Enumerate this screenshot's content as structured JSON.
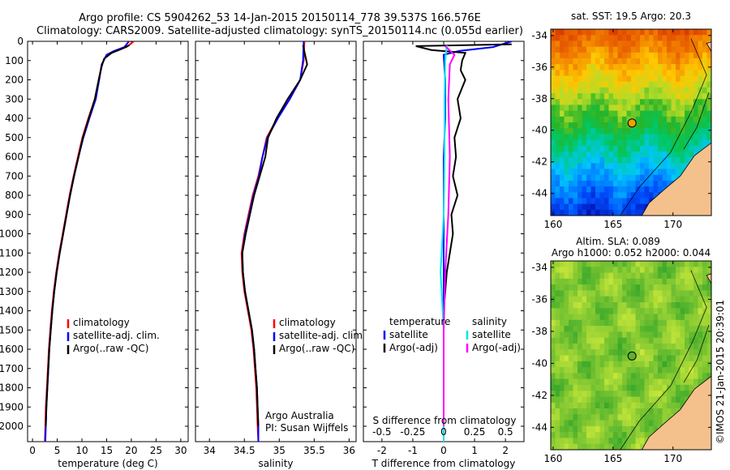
{
  "header": {
    "line1": "Argo profile: CS 5904262_53 14-Jan-2015 20150114_778 39.537S 166.576E",
    "line2": "Climatology: CARS2009. Satellite-adjusted climatology: synTS_20150114.nc (0.055d earlier)"
  },
  "colors": {
    "climatology": "#ff0000",
    "satellite": "#0000ff",
    "argo": "#000000",
    "salinity_satellite": "#00e5ee",
    "salinity_argo": "#ff00ff",
    "land": "#f4c08c"
  },
  "depth_axis": {
    "ticks": [
      0,
      100,
      200,
      300,
      400,
      500,
      600,
      700,
      800,
      900,
      1000,
      1100,
      1200,
      1300,
      1400,
      1500,
      1600,
      1700,
      1800,
      1900,
      2000
    ],
    "range": [
      0,
      2080
    ]
  },
  "chart_data": [
    {
      "type": "line",
      "id": "temperature",
      "xlabel": "temperature (deg C)",
      "xlim": [
        -1,
        31.5
      ],
      "xticks": [
        0,
        5,
        10,
        15,
        20,
        25,
        30
      ],
      "legend": [
        "climatology",
        "satellite-adj. clim.",
        "Argo(..raw -QC)"
      ],
      "series": [
        {
          "name": "climatology",
          "color": "red",
          "points": [
            [
              20.5,
              0
            ],
            [
              19,
              30
            ],
            [
              16.5,
              50
            ],
            [
              15,
              70
            ],
            [
              14,
              120
            ],
            [
              13.4,
              200
            ],
            [
              12.6,
              300
            ],
            [
              11.3,
              400
            ],
            [
              10.1,
              500
            ],
            [
              9.2,
              600
            ],
            [
              8.3,
              700
            ],
            [
              7.5,
              800
            ],
            [
              6.8,
              900
            ],
            [
              6.1,
              1000
            ],
            [
              5.4,
              1100
            ],
            [
              4.8,
              1200
            ],
            [
              4.3,
              1300
            ],
            [
              3.9,
              1400
            ],
            [
              3.6,
              1500
            ],
            [
              3.3,
              1600
            ],
            [
              3.1,
              1700
            ],
            [
              2.9,
              1800
            ],
            [
              2.7,
              1900
            ],
            [
              2.6,
              2000
            ],
            [
              2.5,
              2080
            ]
          ]
        },
        {
          "name": "satellite-adj. clim.",
          "color": "blue",
          "points": [
            [
              19.5,
              0
            ],
            [
              18.6,
              30
            ],
            [
              16.5,
              50
            ],
            [
              15,
              70
            ],
            [
              14,
              120
            ],
            [
              13.5,
              200
            ],
            [
              12.8,
              300
            ],
            [
              11.5,
              400
            ],
            [
              10.3,
              500
            ],
            [
              9.3,
              600
            ],
            [
              8.4,
              700
            ],
            [
              7.6,
              800
            ],
            [
              6.9,
              900
            ],
            [
              6.2,
              1000
            ],
            [
              5.5,
              1100
            ],
            [
              4.9,
              1200
            ],
            [
              4.4,
              1300
            ],
            [
              4,
              1400
            ],
            [
              3.7,
              1500
            ],
            [
              3.4,
              1600
            ],
            [
              3.2,
              1700
            ],
            [
              3,
              1800
            ],
            [
              2.8,
              1900
            ],
            [
              2.7,
              2000
            ],
            [
              2.6,
              2080
            ]
          ]
        },
        {
          "name": "Argo(..raw -QC)",
          "color": "black",
          "points": [
            [
              19.6,
              20
            ],
            [
              18,
              40
            ],
            [
              16,
              60
            ],
            [
              14.5,
              90
            ],
            [
              14,
              130
            ],
            [
              13.4,
              200
            ],
            [
              12.6,
              300
            ],
            [
              11.4,
              400
            ],
            [
              10.2,
              500
            ],
            [
              9.3,
              600
            ],
            [
              8.4,
              700
            ],
            [
              7.6,
              800
            ],
            [
              6.9,
              900
            ],
            [
              6.2,
              1000
            ],
            [
              5.5,
              1100
            ],
            [
              4.9,
              1200
            ],
            [
              4.4,
              1300
            ],
            [
              4,
              1400
            ],
            [
              3.7,
              1500
            ],
            [
              3.4,
              1600
            ],
            [
              3.2,
              1700
            ],
            [
              3,
              1800
            ],
            [
              2.8,
              1900
            ],
            [
              2.7,
              2000
            ]
          ]
        }
      ]
    },
    {
      "type": "line",
      "id": "salinity",
      "xlabel": "salinity",
      "xlim": [
        33.8,
        36.1
      ],
      "xticks": [
        34,
        34.5,
        35,
        35.5,
        36
      ],
      "legend": [
        "climatology",
        "satellite-adj. clim.",
        "Argo(..raw -QC)"
      ],
      "annotation": [
        "Argo Australia",
        "PI: Susan Wijffels"
      ],
      "series": [
        {
          "name": "climatology",
          "color": "red",
          "points": [
            [
              35.36,
              0
            ],
            [
              35.35,
              100
            ],
            [
              35.3,
              200
            ],
            [
              35.15,
              300
            ],
            [
              34.97,
              400
            ],
            [
              34.82,
              500
            ],
            [
              34.76,
              600
            ],
            [
              34.7,
              700
            ],
            [
              34.62,
              800
            ],
            [
              34.56,
              900
            ],
            [
              34.5,
              1000
            ],
            [
              34.46,
              1100
            ],
            [
              34.47,
              1200
            ],
            [
              34.5,
              1300
            ],
            [
              34.55,
              1400
            ],
            [
              34.6,
              1500
            ],
            [
              34.63,
              1600
            ],
            [
              34.65,
              1700
            ],
            [
              34.67,
              1800
            ],
            [
              34.68,
              1900
            ],
            [
              34.69,
              2000
            ],
            [
              34.7,
              2080
            ]
          ]
        },
        {
          "name": "satellite-adj. clim.",
          "color": "blue",
          "points": [
            [
              35.35,
              0
            ],
            [
              35.34,
              100
            ],
            [
              35.3,
              200
            ],
            [
              35.15,
              300
            ],
            [
              34.98,
              400
            ],
            [
              34.83,
              500
            ],
            [
              34.76,
              600
            ],
            [
              34.71,
              700
            ],
            [
              34.63,
              800
            ],
            [
              34.57,
              900
            ],
            [
              34.51,
              1000
            ],
            [
              34.47,
              1100
            ],
            [
              34.48,
              1200
            ],
            [
              34.51,
              1300
            ],
            [
              34.56,
              1400
            ],
            [
              34.61,
              1500
            ],
            [
              34.64,
              1600
            ],
            [
              34.66,
              1700
            ],
            [
              34.68,
              1800
            ],
            [
              34.69,
              1900
            ],
            [
              34.7,
              2000
            ],
            [
              34.7,
              2080
            ]
          ]
        },
        {
          "name": "Argo(..raw -QC)",
          "color": "black",
          "points": [
            [
              35.34,
              20
            ],
            [
              35.4,
              120
            ],
            [
              35.3,
              200
            ],
            [
              35.12,
              300
            ],
            [
              34.96,
              400
            ],
            [
              34.84,
              500
            ],
            [
              34.8,
              600
            ],
            [
              34.72,
              700
            ],
            [
              34.64,
              800
            ],
            [
              34.58,
              900
            ],
            [
              34.52,
              1000
            ],
            [
              34.47,
              1100
            ],
            [
              34.48,
              1200
            ],
            [
              34.51,
              1300
            ],
            [
              34.56,
              1400
            ],
            [
              34.61,
              1500
            ],
            [
              34.64,
              1600
            ],
            [
              34.66,
              1700
            ],
            [
              34.68,
              1800
            ],
            [
              34.69,
              1900
            ],
            [
              34.7,
              2000
            ]
          ]
        }
      ]
    },
    {
      "type": "line",
      "id": "difference",
      "xlabel": "T difference from climatology",
      "xlabel_top": "S difference from climatology",
      "xlim": [
        -2.6,
        2.6
      ],
      "xticks": [
        -2,
        -1,
        0,
        1,
        2
      ],
      "xticks_top": [
        -0.5,
        -0.25,
        0,
        0.25,
        0.5
      ],
      "xticks_top_scale": 4,
      "legend_temperature": [
        "temperature",
        "satellite",
        "Argo(-adj)"
      ],
      "legend_salinity": [
        "salinity",
        "satellite",
        "Argo(-adj)"
      ],
      "series": [
        {
          "name": "T satellite",
          "color": "blue",
          "points": [
            [
              2.2,
              0
            ],
            [
              1.6,
              30
            ],
            [
              0.5,
              50
            ],
            [
              0,
              70
            ],
            [
              0.05,
              200
            ],
            [
              0.05,
              400
            ],
            [
              0,
              600
            ],
            [
              0,
              800
            ],
            [
              0,
              1000
            ],
            [
              0,
              2080
            ]
          ]
        },
        {
          "name": "T Argo(-adj)",
          "color": "black",
          "points": [
            [
              2.2,
              15
            ],
            [
              -0.9,
              25
            ],
            [
              -0.4,
              45
            ],
            [
              0.7,
              60
            ],
            [
              0.6,
              100
            ],
            [
              0.55,
              150
            ],
            [
              0.7,
              200
            ],
            [
              0.45,
              300
            ],
            [
              0.55,
              400
            ],
            [
              0.35,
              500
            ],
            [
              0.4,
              600
            ],
            [
              0.3,
              700
            ],
            [
              0.45,
              800
            ],
            [
              0.25,
              900
            ],
            [
              0.3,
              1000
            ],
            [
              0.2,
              1100
            ],
            [
              0.1,
              1200
            ],
            [
              0.05,
              1300
            ],
            [
              0,
              1400
            ],
            [
              0,
              2000
            ]
          ]
        },
        {
          "name": "S satellite",
          "color": "cyan",
          "points": [
            [
              0.1,
              20
            ],
            [
              0.05,
              100
            ],
            [
              0.03,
              300
            ],
            [
              0.03,
              600
            ],
            [
              0,
              900
            ],
            [
              -0.1,
              1200
            ],
            [
              0,
              1500
            ],
            [
              0,
              2080
            ]
          ]
        },
        {
          "name": "S Argo(-adj)",
          "color": "magenta",
          "points": [
            [
              0.05,
              25
            ],
            [
              0.35,
              70
            ],
            [
              0.2,
              120
            ],
            [
              0.15,
              300
            ],
            [
              0.2,
              600
            ],
            [
              0.15,
              900
            ],
            [
              0.05,
              1200
            ],
            [
              0,
              1500
            ],
            [
              0,
              2000
            ]
          ]
        }
      ]
    },
    {
      "type": "heatmap",
      "id": "sst-map",
      "title": "sat. SST: 19.5 Argo: 20.3",
      "xticks": [
        160,
        165,
        170
      ],
      "yticks": [
        -34,
        -36,
        -38,
        -40,
        -42,
        -44
      ],
      "xlim": [
        159.8,
        173.2
      ],
      "ylim": [
        -45.4,
        -33.6
      ],
      "float_marker": [
        166.58,
        -39.54
      ]
    },
    {
      "type": "heatmap",
      "id": "sla-map",
      "title_line1": "Altim. SLA: 0.089",
      "title_line2": "Argo h1000: 0.052 h2000: 0.044",
      "xticks": [
        160,
        165,
        170
      ],
      "yticks": [
        -34,
        -36,
        -38,
        -40,
        -42,
        -44
      ],
      "xlim": [
        159.8,
        173.2
      ],
      "ylim": [
        -45.4,
        -33.6
      ],
      "float_marker": [
        166.58,
        -39.54
      ]
    }
  ],
  "footer": {
    "credit": "©IMOS 21-Jan-2015 20:39:01"
  }
}
